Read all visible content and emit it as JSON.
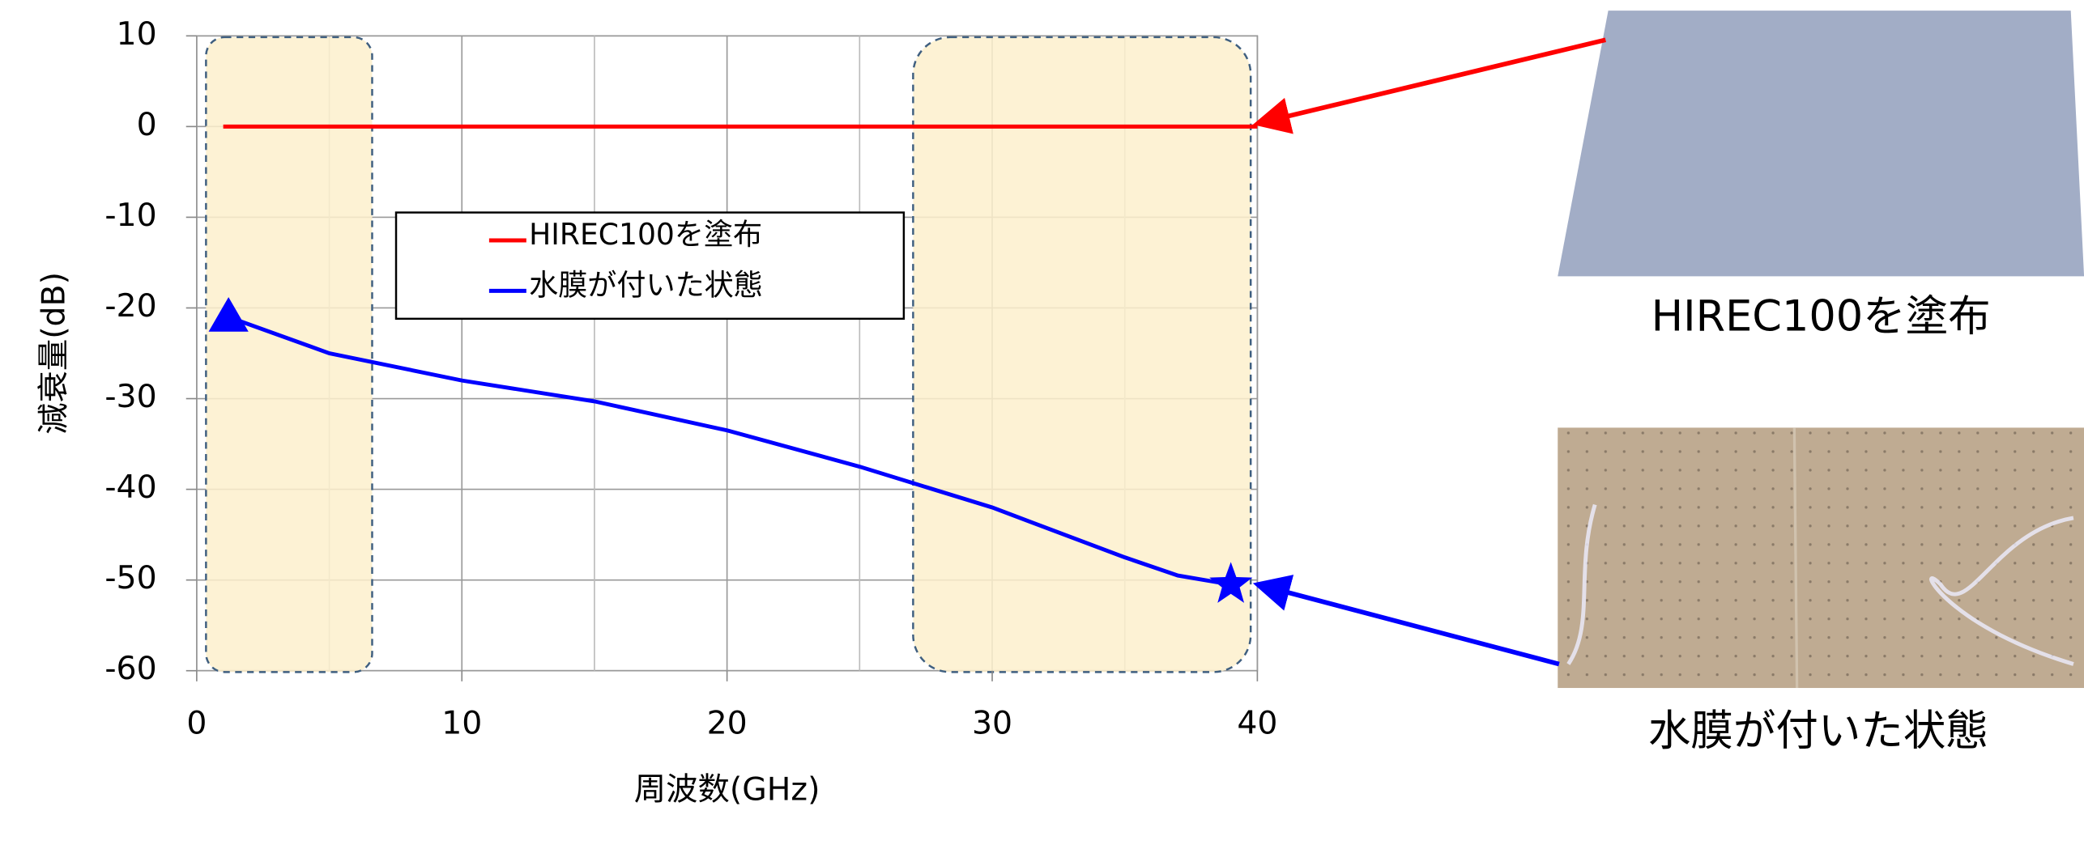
{
  "chart_data": {
    "type": "line",
    "x_label": "周波数(GHz)",
    "y_label": "減衰量(dB)",
    "xlim": [
      0,
      40
    ],
    "ylim": [
      -60,
      10
    ],
    "xticks": [
      0,
      10,
      20,
      30,
      40
    ],
    "yticks": [
      -60,
      -50,
      -40,
      -30,
      -20,
      -10,
      0,
      10
    ],
    "grid": true,
    "series": [
      {
        "name": "HIREC100を塗布",
        "color": "#ff0000",
        "x": [
          1,
          40
        ],
        "values": [
          0,
          0
        ]
      },
      {
        "name": "水膜が付いた状態",
        "color": "#0000ff",
        "x": [
          1.2,
          5,
          10,
          15,
          20,
          25,
          30,
          35,
          37,
          39
        ],
        "values": [
          -21,
          -25,
          -28,
          -30.3,
          -33.5,
          -37.5,
          -42,
          -47.5,
          -49.5,
          -50.5
        ]
      }
    ]
  }
}
